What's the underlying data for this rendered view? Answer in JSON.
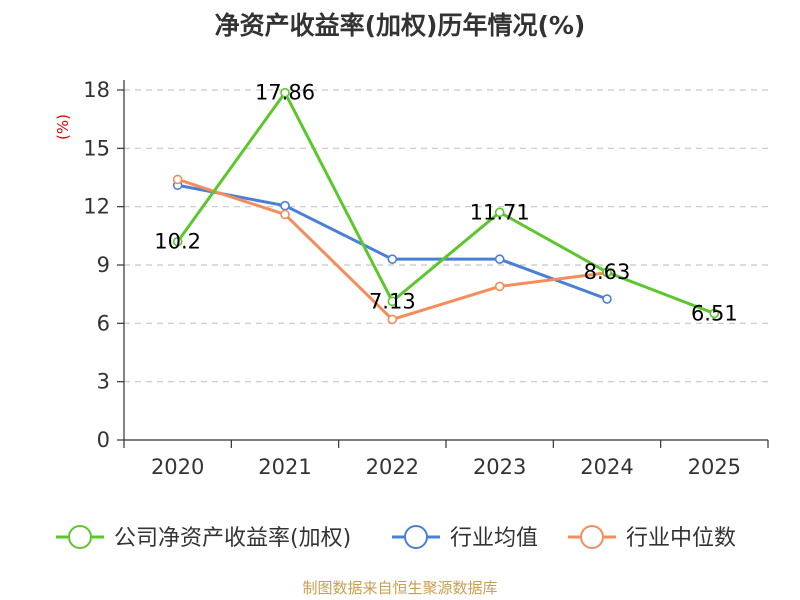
{
  "chart_data": {
    "type": "line",
    "title": "净资产收益率(加权)历年情况(%)",
    "ylabel": "(%)",
    "xlabel": "",
    "categories": [
      "2020",
      "2021",
      "2022",
      "2023",
      "2024",
      "2025"
    ],
    "ylim": [
      0,
      18
    ],
    "yticks": [
      0,
      3,
      6,
      9,
      12,
      15,
      18
    ],
    "grid": true,
    "legend_position": "bottom",
    "series": [
      {
        "name": "公司净资产收益率(加权)",
        "color": "#5cc72d",
        "values": [
          10.2,
          17.86,
          7.13,
          11.71,
          8.63,
          6.51
        ],
        "labels": [
          "10.2",
          "17.86",
          "7.13",
          "11.71",
          "8.63",
          "6.51"
        ]
      },
      {
        "name": "行业均值",
        "color": "#4a7fd8",
        "values": [
          13.1,
          12.05,
          9.3,
          9.3,
          7.25,
          null
        ]
      },
      {
        "name": "行业中位数",
        "color": "#f58d5b",
        "values": [
          13.4,
          11.6,
          6.2,
          7.9,
          8.6,
          null
        ]
      }
    ],
    "source": "制图数据来自恒生聚源数据库"
  }
}
